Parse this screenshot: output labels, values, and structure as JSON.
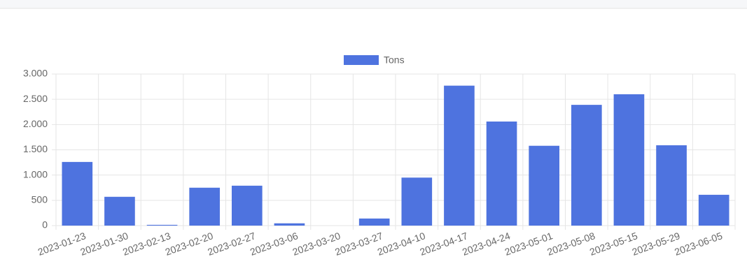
{
  "chart_data": {
    "type": "bar",
    "categories": [
      "2023-01-23",
      "2023-01-30",
      "2023-02-13",
      "2023-02-20",
      "2023-02-27",
      "2023-03-06",
      "2023-03-20",
      "2023-03-27",
      "2023-04-10",
      "2023-04-17",
      "2023-04-24",
      "2023-05-01",
      "2023-05-08",
      "2023-05-15",
      "2023-05-29",
      "2023-06-05"
    ],
    "series": [
      {
        "name": "Tons",
        "color": "#4e73df",
        "values": [
          1260,
          570,
          15,
          750,
          790,
          45,
          0,
          140,
          950,
          2770,
          2060,
          1580,
          2390,
          2600,
          1590,
          610
        ]
      }
    ],
    "ylim": [
      0,
      3000
    ],
    "yticks": [
      0,
      500,
      {
        "value": 1000,
        "label": "1.000"
      },
      {
        "value": 1500,
        "label": "1.500"
      },
      {
        "value": 2000,
        "label": "2.000"
      },
      {
        "value": 2500,
        "label": "2.500"
      },
      {
        "value": 3000,
        "label": "3.000"
      }
    ],
    "grid": true,
    "legend": "top"
  }
}
